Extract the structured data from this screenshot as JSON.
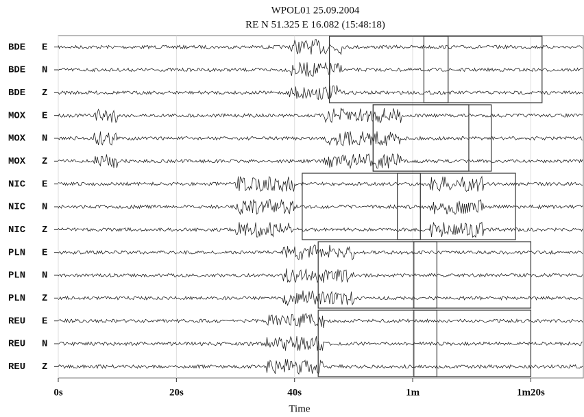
{
  "chart_data": {
    "type": "seismogram",
    "title": "WPOL01 25.09.2004",
    "subtitle": "RE N 51.325 E 16.082 (15:48:18)",
    "x_label": "Time",
    "xlim": [
      0,
      89
    ],
    "xticks": [
      {
        "value": 0,
        "label": "0s"
      },
      {
        "value": 20,
        "label": "20s"
      },
      {
        "value": 40,
        "label": "40s"
      },
      {
        "value": 60,
        "label": "1m"
      },
      {
        "value": 80,
        "label": "1m20s"
      }
    ],
    "grid": true,
    "color": "#222222",
    "stations": [
      {
        "name": "BDE",
        "channels": [
          "E",
          "N",
          "Z"
        ],
        "windows": [
          [
            45.9,
            66.0
          ],
          [
            61.9,
            81.9
          ]
        ],
        "bursts": [
          [
            39,
            48
          ]
        ]
      },
      {
        "name": "MOX",
        "channels": [
          "E",
          "N",
          "Z"
        ],
        "windows": [
          [
            53.3,
            69.5
          ],
          [
            53.3,
            73.3
          ]
        ],
        "bursts": [
          [
            6,
            10
          ],
          [
            45,
            58
          ]
        ]
      },
      {
        "name": "NIC",
        "channels": [
          "E",
          "N",
          "Z"
        ],
        "windows": [
          [
            41.3,
            61.3
          ],
          [
            57.4,
            77.4
          ]
        ],
        "bursts": [
          [
            30,
            40
          ],
          [
            63,
            72
          ]
        ]
      },
      {
        "name": "PLN",
        "channels": [
          "E",
          "N",
          "Z"
        ],
        "windows": [
          [
            44.0,
            64.1
          ],
          [
            60.2,
            80.0
          ]
        ],
        "bursts": [
          [
            38,
            50
          ]
        ]
      },
      {
        "name": "REU",
        "channels": [
          "E",
          "N",
          "Z"
        ],
        "windows": [
          [
            44.0,
            64.1
          ],
          [
            60.2,
            80.0
          ]
        ],
        "bursts": [
          [
            35,
            45
          ]
        ]
      }
    ]
  }
}
